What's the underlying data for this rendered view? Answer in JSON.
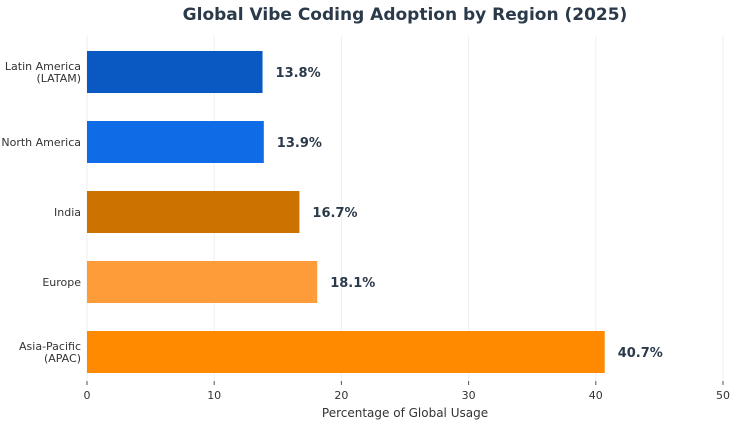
{
  "chart_data": {
    "type": "bar",
    "orientation": "horizontal",
    "title": "Global Vibe Coding Adoption by Region (2025)",
    "xlabel": "Percentage of Global Usage",
    "ylabel": "",
    "xlim": [
      0,
      50
    ],
    "xticks": [
      0,
      10,
      20,
      30,
      40,
      50
    ],
    "grid": true,
    "categories": [
      [
        "Latin America",
        "(LATAM)"
      ],
      [
        "North America"
      ],
      [
        "India"
      ],
      [
        "Europe"
      ],
      [
        "Asia-Pacific",
        "(APAC)"
      ]
    ],
    "values": [
      13.8,
      13.9,
      16.7,
      18.1,
      40.7
    ],
    "data_labels": [
      "13.8%",
      "13.9%",
      "16.7%",
      "18.1%",
      "40.7%"
    ],
    "colors": [
      "#0a58c2",
      "#0f6ce6",
      "#cc7200",
      "#ff9c3a",
      "#ff8a00"
    ]
  }
}
